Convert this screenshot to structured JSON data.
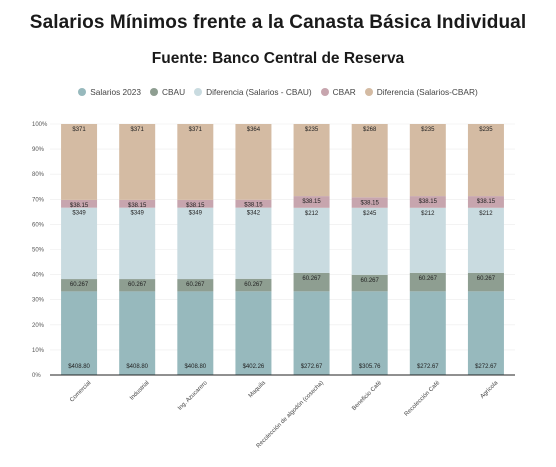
{
  "chart_data": {
    "type": "bar",
    "stacked": "percent",
    "title": "Salarios Mínimos frente a la Canasta Básica Individual",
    "subtitle": "Fuente: Banco Central de Reserva",
    "xlabel": "",
    "ylabel": "",
    "ylim": [
      0,
      100
    ],
    "y_ticks": [
      "0%",
      "10%",
      "20%",
      "30%",
      "40%",
      "50%",
      "60%",
      "70%",
      "80%",
      "90%",
      "100%"
    ],
    "grid": true,
    "legend_position": "top",
    "categories": [
      "Comercial",
      "Industrial",
      "Ing. Azucarero",
      "Maquila",
      "Recolección de algodón (cosecha)",
      "Beneficio Café",
      "Recolección Café",
      "Agrícola"
    ],
    "series": [
      {
        "name": "Salarios 2023",
        "color": "#97b9bd",
        "values": [
          408.8,
          408.8,
          408.8,
          402.26,
          272.67,
          305.76,
          272.67,
          272.67
        ],
        "labels": [
          "$408.80",
          "$408.80",
          "$408.80",
          "$402.26",
          "$272.67",
          "$305.76",
          "$272.67",
          "$272.67"
        ]
      },
      {
        "name": "CBAU",
        "color": "#8e9e91",
        "values": [
          60.267,
          60.267,
          60.267,
          60.267,
          60.267,
          60.267,
          60.267,
          60.267
        ],
        "labels": [
          "60.267",
          "60.267",
          "60.267",
          "60.267",
          "60.267",
          "60.267",
          "60.267",
          "60.267"
        ]
      },
      {
        "name": "Diferencia (Salarios - CBAU)",
        "color": "#c9dbe0",
        "values": [
          349,
          349,
          349,
          342,
          212,
          245,
          212,
          212
        ],
        "labels": [
          "$349",
          "$349",
          "$349",
          "$342",
          "$212",
          "$245",
          "$212",
          "$212"
        ]
      },
      {
        "name": "CBAR",
        "color": "#c7a5ae",
        "values": [
          38.15,
          38.15,
          38.15,
          38.15,
          38.15,
          38.15,
          38.15,
          38.15
        ],
        "labels": [
          "$38.15",
          "$38.15",
          "$38.15",
          "$38.15",
          "$38.15",
          "$38.15",
          "$38.15",
          "$38.15"
        ]
      },
      {
        "name": "Diferencia (Salarios-CBAR)",
        "color": "#d4bba3",
        "values": [
          371,
          371,
          371,
          364,
          235,
          268,
          235,
          235
        ],
        "labels": [
          "$371",
          "$371",
          "$371",
          "$364",
          "$235",
          "$268",
          "$235",
          "$235"
        ]
      }
    ]
  }
}
